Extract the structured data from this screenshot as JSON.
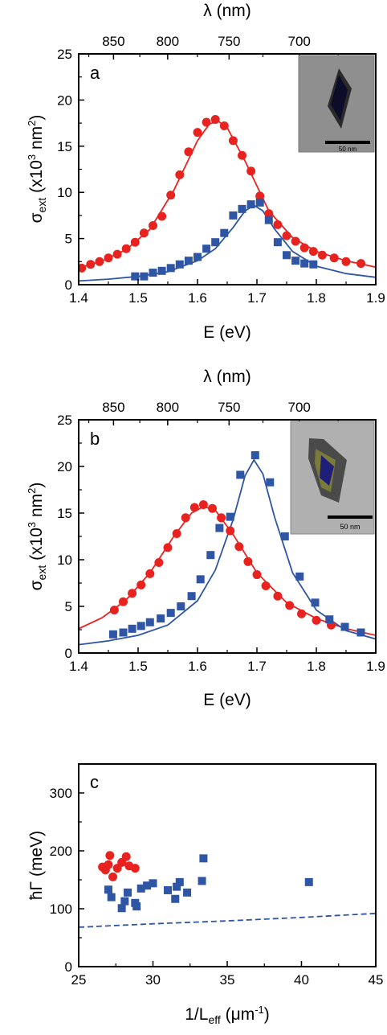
{
  "chart_data": [
    {
      "type": "scatter",
      "panel_label": "a",
      "xlabel": "E (eV)",
      "ylabel_main": "σ",
      "ylabel_sub": "ext",
      "ylabel_rest": " (x10",
      "ylabel_sup": "3",
      "ylabel_unit": " nm",
      "ylabel_sup2": "2",
      "ylabel_close": ")",
      "top_axis_label": "λ (nm)",
      "top_ticks": [
        "850",
        "800",
        "750",
        "700"
      ],
      "top_tick_values": [
        850,
        800,
        750,
        700
      ],
      "xlim": [
        1.4,
        1.9
      ],
      "ylim": [
        0,
        25
      ],
      "xticks": [
        "1.4",
        "1.5",
        "1.6",
        "1.7",
        "1.8",
        "1.9"
      ],
      "yticks": [
        "0",
        "5",
        "10",
        "15",
        "20",
        "25"
      ],
      "inset": {
        "scale_bar_label": "50 nm"
      },
      "series": [
        {
          "color": "#e8231f",
          "marker": "circle",
          "x": [
            1.405,
            1.42,
            1.435,
            1.45,
            1.465,
            1.48,
            1.495,
            1.51,
            1.525,
            1.54,
            1.555,
            1.57,
            1.585,
            1.6,
            1.615,
            1.63,
            1.645,
            1.66,
            1.675,
            1.69,
            1.705,
            1.72,
            1.735,
            1.75,
            1.765,
            1.78,
            1.795,
            1.81,
            1.83,
            1.85,
            1.875
          ],
          "y": [
            1.8,
            2.2,
            2.5,
            2.9,
            3.3,
            3.9,
            4.6,
            5.6,
            6.4,
            7.4,
            9.7,
            11.9,
            14.4,
            16.5,
            17.6,
            17.9,
            17.2,
            15.6,
            14.0,
            12.3,
            9.6,
            7.7,
            6.5,
            5.3,
            4.7,
            4.0,
            3.6,
            3.2,
            2.9,
            2.5,
            2.3
          ],
          "fit_x": [
            1.4,
            1.44,
            1.48,
            1.52,
            1.56,
            1.6,
            1.62,
            1.635,
            1.65,
            1.68,
            1.72,
            1.76,
            1.8,
            1.85,
            1.9
          ],
          "fit_y": [
            1.8,
            2.6,
            3.8,
            6.0,
            10.2,
            15.6,
            17.4,
            17.7,
            17.0,
            13.4,
            8.0,
            5.1,
            3.6,
            2.6,
            1.9
          ]
        },
        {
          "color": "#2f55a5",
          "marker": "square",
          "x": [
            1.495,
            1.51,
            1.525,
            1.54,
            1.555,
            1.57,
            1.585,
            1.6,
            1.615,
            1.63,
            1.645,
            1.66,
            1.675,
            1.69,
            1.705,
            1.72,
            1.735,
            1.75,
            1.765,
            1.78,
            1.795
          ],
          "y": [
            0.9,
            0.9,
            1.3,
            1.5,
            1.8,
            2.2,
            2.6,
            3.0,
            3.9,
            4.6,
            5.6,
            7.5,
            8.2,
            8.7,
            8.9,
            7.0,
            4.6,
            3.2,
            2.6,
            2.3,
            2.2
          ],
          "fit_x": [
            1.4,
            1.45,
            1.5,
            1.55,
            1.6,
            1.63,
            1.66,
            1.68,
            1.695,
            1.71,
            1.73,
            1.76,
            1.8,
            1.85,
            1.9
          ],
          "fit_y": [
            0.4,
            0.6,
            0.9,
            1.4,
            2.6,
            3.9,
            6.2,
            8.0,
            8.6,
            8.0,
            6.0,
            3.6,
            2.0,
            1.2,
            0.8
          ]
        }
      ]
    },
    {
      "type": "scatter",
      "panel_label": "b",
      "xlabel": "E (eV)",
      "ylabel_main": "σ",
      "ylabel_sub": "ext",
      "ylabel_rest": " (x10",
      "ylabel_sup": "3",
      "ylabel_unit": " nm",
      "ylabel_sup2": "2",
      "ylabel_close": ")",
      "top_axis_label": "λ (nm)",
      "top_ticks": [
        "850",
        "800",
        "750",
        "700"
      ],
      "top_tick_values": [
        850,
        800,
        750,
        700
      ],
      "xlim": [
        1.4,
        1.9
      ],
      "ylim": [
        0,
        25
      ],
      "xticks": [
        "1.4",
        "1.5",
        "1.6",
        "1.7",
        "1.8",
        "1.9"
      ],
      "yticks": [
        "0",
        "5",
        "10",
        "15",
        "20",
        "25"
      ],
      "inset": {
        "scale_bar_label": "50 nm"
      },
      "series": [
        {
          "color": "#e8231f",
          "marker": "circle",
          "x": [
            1.46,
            1.475,
            1.49,
            1.505,
            1.52,
            1.535,
            1.55,
            1.565,
            1.58,
            1.595,
            1.61,
            1.625,
            1.64,
            1.655,
            1.67,
            1.685,
            1.7,
            1.715,
            1.735,
            1.755,
            1.775,
            1.8,
            1.825
          ],
          "y": [
            4.6,
            5.5,
            6.4,
            7.3,
            8.5,
            9.7,
            11.3,
            12.8,
            14.5,
            15.6,
            15.9,
            15.5,
            14.5,
            13.1,
            11.4,
            9.8,
            8.4,
            7.2,
            6.1,
            5.1,
            4.2,
            3.5,
            3.0
          ],
          "fit_x": [
            1.4,
            1.44,
            1.48,
            1.52,
            1.56,
            1.59,
            1.61,
            1.63,
            1.66,
            1.7,
            1.75,
            1.8,
            1.85,
            1.9
          ],
          "fit_y": [
            2.6,
            3.8,
            5.7,
            8.6,
            12.5,
            15.0,
            15.7,
            15.3,
            12.7,
            8.6,
            5.4,
            3.7,
            2.6,
            1.9
          ]
        },
        {
          "color": "#2f55a5",
          "marker": "square",
          "x": [
            1.458,
            1.475,
            1.49,
            1.505,
            1.52,
            1.538,
            1.555,
            1.572,
            1.59,
            1.605,
            1.622,
            1.637,
            1.655,
            1.672,
            1.697,
            1.722,
            1.747,
            1.772,
            1.798,
            1.822,
            1.848,
            1.875
          ],
          "y": [
            2.0,
            2.2,
            2.6,
            2.9,
            3.3,
            3.7,
            4.3,
            5.0,
            6.1,
            7.9,
            10.5,
            13.4,
            14.6,
            19.1,
            21.2,
            18.3,
            12.5,
            8.2,
            5.4,
            3.6,
            2.8,
            2.2
          ],
          "fit_x": [
            1.4,
            1.45,
            1.5,
            1.55,
            1.6,
            1.63,
            1.66,
            1.68,
            1.695,
            1.71,
            1.73,
            1.76,
            1.8,
            1.85,
            1.9
          ],
          "fit_y": [
            0.9,
            1.3,
            1.9,
            3.0,
            5.6,
            8.9,
            14.3,
            19.0,
            20.7,
            19.2,
            14.5,
            8.6,
            4.6,
            2.4,
            1.5
          ]
        }
      ]
    },
    {
      "type": "scatter",
      "panel_label": "c",
      "xlabel_main": "1/L",
      "xlabel_sub": "eff",
      "xlabel_rest": " (μm",
      "xlabel_sup": "-1",
      "xlabel_close": ")",
      "ylabel_main": "ħΓ (meV)",
      "xlim": [
        25,
        45
      ],
      "ylim": [
        0,
        350
      ],
      "xticks": [
        "25",
        "30",
        "35",
        "40",
        "45"
      ],
      "yticks": [
        "0",
        "100",
        "200",
        "300"
      ],
      "series": [
        {
          "color": "#e8231f",
          "marker": "circle",
          "x": [
            26.6,
            26.8,
            27.0,
            27.1,
            27.3,
            27.6,
            27.9,
            28.2,
            28.4,
            28.8
          ],
          "y": [
            172,
            167,
            176,
            192,
            155,
            170,
            180,
            190,
            174,
            170
          ]
        },
        {
          "color": "#2f55a5",
          "marker": "square",
          "x": [
            27.0,
            27.2,
            27.9,
            28.1,
            28.3,
            28.8,
            28.9,
            29.2,
            29.6,
            30.0,
            31.0,
            31.5,
            31.6,
            31.8,
            32.3,
            33.3,
            33.4,
            40.5
          ],
          "y": [
            133,
            120,
            101,
            113,
            128,
            110,
            104,
            135,
            140,
            144,
            132,
            117,
            138,
            146,
            128,
            148,
            187,
            146
          ]
        },
        {
          "color": "#2f55a5",
          "marker": "dashed-line",
          "x": [
            25,
            30,
            35,
            40,
            45
          ],
          "y": [
            68,
            74,
            79,
            85,
            92
          ]
        }
      ]
    }
  ]
}
